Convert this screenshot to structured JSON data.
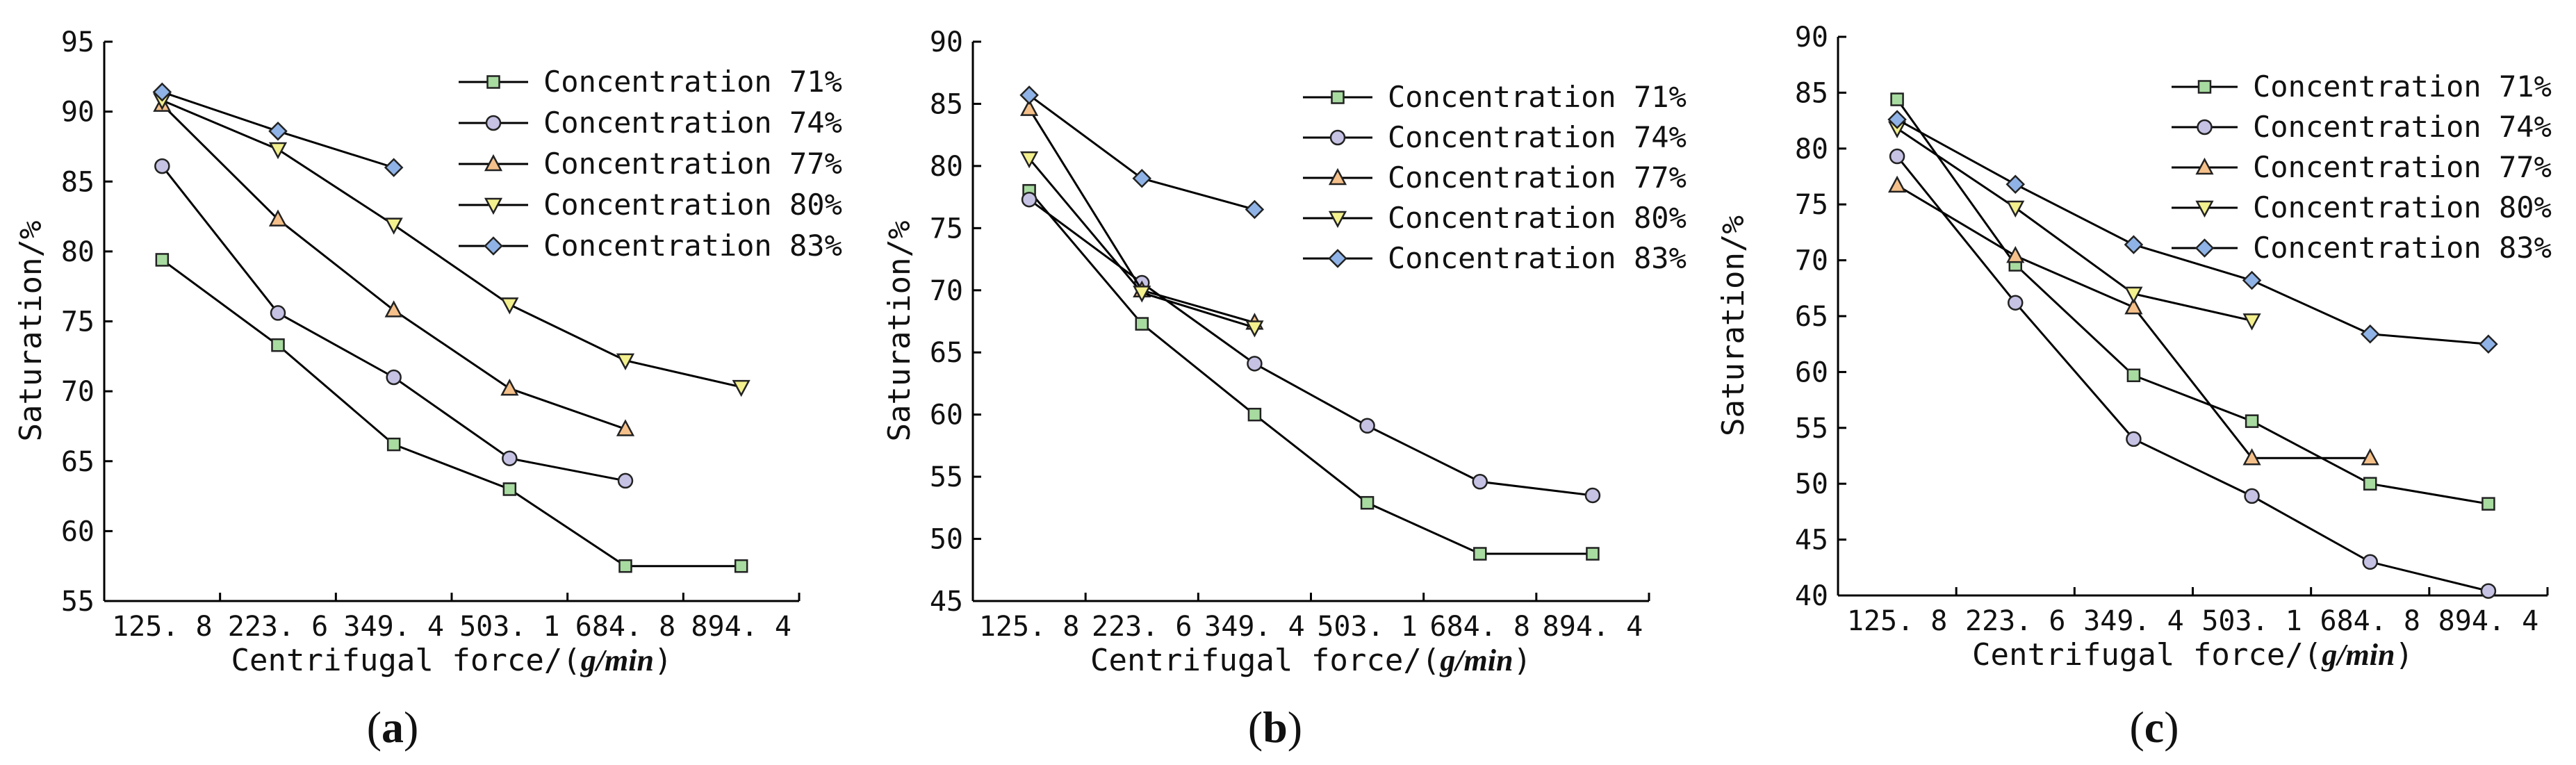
{
  "colors": {
    "square": "#a8dba0",
    "circle": "#c5c2e4",
    "triangle": "#f5c08a",
    "invtriangle": "#f3f08e",
    "diamond": "#8fb3e6",
    "line": "#000000"
  },
  "chart_data": [
    {
      "type": "line",
      "panel_label": "a",
      "xlabel": "Centrifugal force/(",
      "xlabel_unit": "g/min",
      "xlabel_close": ")",
      "ylabel": "Saturation/%",
      "categories": [
        "125. 8",
        "223. 6",
        "349. 4",
        "503. 1",
        "684. 8",
        "894. 4"
      ],
      "ylim": [
        55,
        95
      ],
      "yticks": [
        55,
        60,
        65,
        70,
        75,
        80,
        85,
        90,
        95
      ],
      "series": [
        {
          "name": "Concentration 71%",
          "marker": "square",
          "values": [
            79.4,
            73.3,
            66.2,
            63.0,
            57.5,
            57.5
          ]
        },
        {
          "name": "Concentration 74%",
          "marker": "circle",
          "values": [
            86.1,
            75.6,
            71.0,
            65.2,
            63.6,
            null
          ]
        },
        {
          "name": "Concentration 77%",
          "marker": "triangle",
          "values": [
            90.5,
            82.3,
            75.8,
            70.2,
            67.3,
            null
          ]
        },
        {
          "name": "Concentration 80%",
          "marker": "invtriangle",
          "values": [
            90.8,
            87.3,
            81.9,
            76.2,
            72.2,
            70.3
          ]
        },
        {
          "name": "Concentration 83%",
          "marker": "diamond",
          "values": [
            91.4,
            88.6,
            86.0,
            null,
            null,
            null
          ]
        }
      ]
    },
    {
      "type": "line",
      "panel_label": "b",
      "xlabel": "Centrifugal force/(",
      "xlabel_unit": "g/min",
      "xlabel_close": ")",
      "ylabel": "Saturation/%",
      "categories": [
        "125. 8",
        "223. 6",
        "349. 4",
        "503. 1",
        "684. 8",
        "894. 4"
      ],
      "ylim": [
        45,
        90
      ],
      "yticks": [
        45,
        50,
        55,
        60,
        65,
        70,
        75,
        80,
        85,
        90
      ],
      "series": [
        {
          "name": "Concentration 71%",
          "marker": "square",
          "values": [
            78.0,
            67.3,
            60.0,
            52.9,
            48.8,
            48.8
          ]
        },
        {
          "name": "Concentration 74%",
          "marker": "circle",
          "values": [
            77.3,
            70.6,
            64.1,
            59.1,
            54.6,
            53.5
          ]
        },
        {
          "name": "Concentration 77%",
          "marker": "triangle",
          "values": [
            84.6,
            70.0,
            67.4,
            null,
            null,
            null
          ]
        },
        {
          "name": "Concentration 80%",
          "marker": "invtriangle",
          "values": [
            80.6,
            69.8,
            67.0,
            null,
            null,
            null
          ]
        },
        {
          "name": "Concentration 83%",
          "marker": "diamond",
          "values": [
            85.7,
            79.0,
            76.5,
            null,
            null,
            null
          ]
        }
      ]
    },
    {
      "type": "line",
      "panel_label": "c",
      "xlabel": "Centrifugal force/(",
      "xlabel_unit": "g/min",
      "xlabel_close": ")",
      "ylabel": "Saturation/%",
      "categories": [
        "125. 8",
        "223. 6",
        "349. 4",
        "503. 1",
        "684. 8",
        "894. 4"
      ],
      "ylim": [
        40,
        90
      ],
      "yticks": [
        40,
        45,
        50,
        55,
        60,
        65,
        70,
        75,
        80,
        85,
        90
      ],
      "series": [
        {
          "name": "Concentration 71%",
          "marker": "square",
          "values": [
            84.4,
            69.6,
            59.7,
            55.6,
            50.0,
            48.2
          ]
        },
        {
          "name": "Concentration 74%",
          "marker": "circle",
          "values": [
            79.3,
            66.2,
            54.0,
            48.9,
            43.0,
            40.4
          ]
        },
        {
          "name": "Concentration 77%",
          "marker": "triangle",
          "values": [
            76.7,
            70.4,
            65.8,
            52.3,
            52.3,
            null
          ]
        },
        {
          "name": "Concentration 80%",
          "marker": "invtriangle",
          "values": [
            81.8,
            74.7,
            67.0,
            64.6,
            null,
            null
          ]
        },
        {
          "name": "Concentration 83%",
          "marker": "diamond",
          "values": [
            82.6,
            76.8,
            71.4,
            68.2,
            63.4,
            62.5
          ]
        }
      ]
    }
  ]
}
